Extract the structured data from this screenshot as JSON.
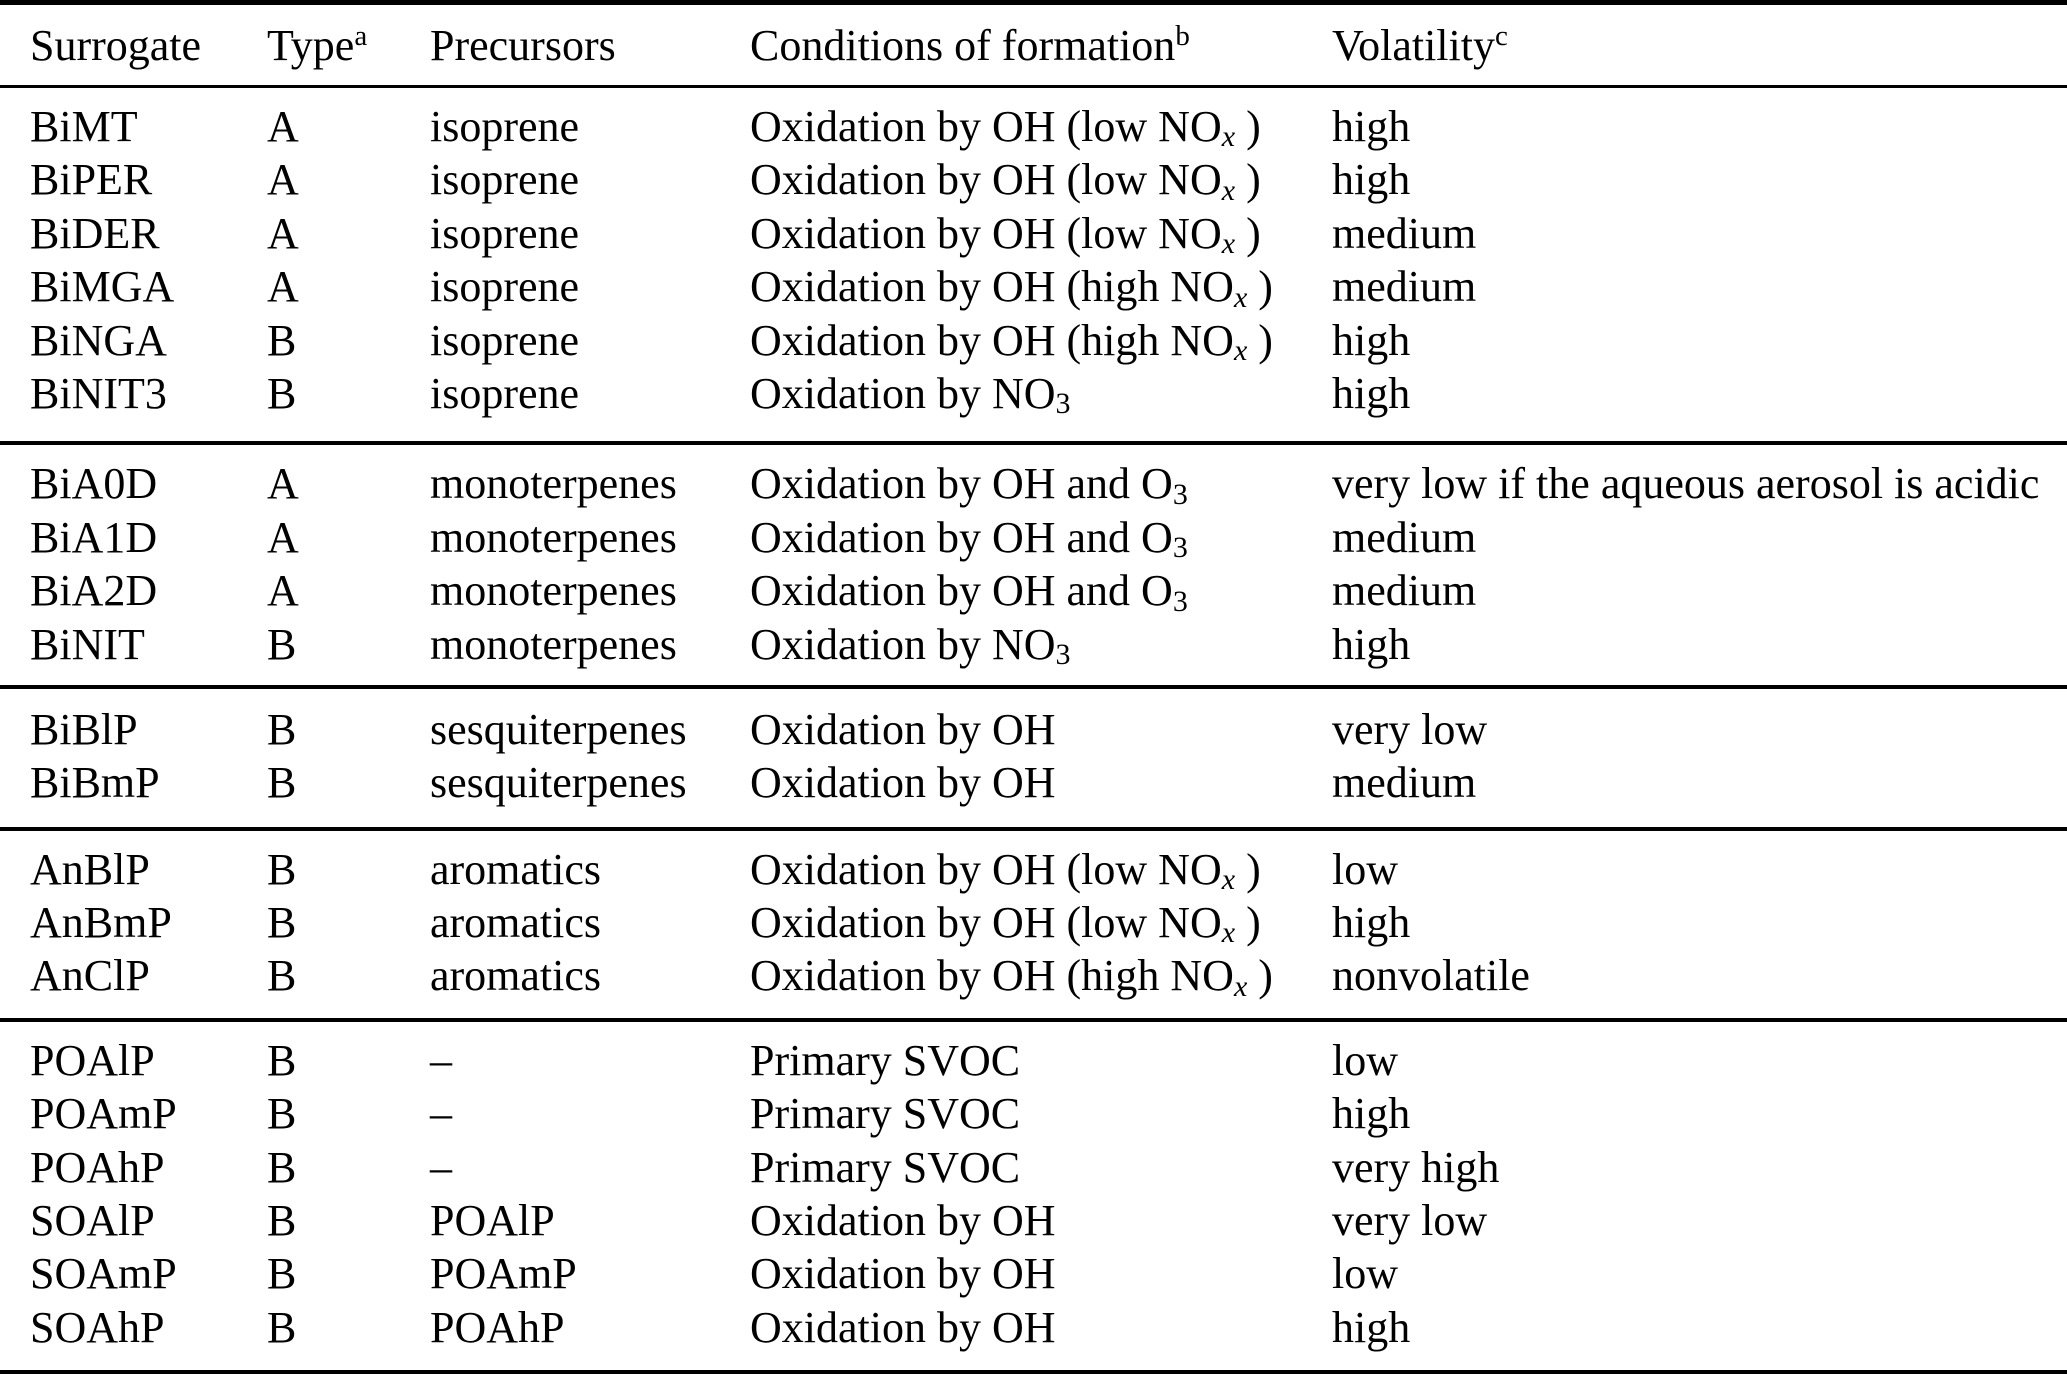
{
  "table": {
    "headers": [
      {
        "label": "Surrogate",
        "sup": ""
      },
      {
        "label": "Type",
        "sup": "a"
      },
      {
        "label": "Precursors",
        "sup": ""
      },
      {
        "label": "Conditions of formation",
        "sup": "b"
      },
      {
        "label": "Volatility",
        "sup": "c"
      }
    ],
    "groups": [
      {
        "rows": [
          {
            "surrogate": "BiMT",
            "type": "A",
            "precursors": "isoprene",
            "cond_pre": "Oxidation by OH (low NO",
            "cond_sub_it": "x",
            "cond_sub": "",
            "cond_post": " )",
            "volatility": "high"
          },
          {
            "surrogate": "BiPER",
            "type": "A",
            "precursors": "isoprene",
            "cond_pre": "Oxidation by OH (low NO",
            "cond_sub_it": "x",
            "cond_sub": "",
            "cond_post": " )",
            "volatility": "high"
          },
          {
            "surrogate": "BiDER",
            "type": "A",
            "precursors": "isoprene",
            "cond_pre": "Oxidation by OH (low NO",
            "cond_sub_it": "x",
            "cond_sub": "",
            "cond_post": " )",
            "volatility": "medium"
          },
          {
            "surrogate": "BiMGA",
            "type": "A",
            "precursors": "isoprene",
            "cond_pre": "Oxidation by OH (high NO",
            "cond_sub_it": "x",
            "cond_sub": "",
            "cond_post": " )",
            "volatility": "medium"
          },
          {
            "surrogate": "BiNGA",
            "type": "B",
            "precursors": "isoprene",
            "cond_pre": "Oxidation by OH (high NO",
            "cond_sub_it": "x",
            "cond_sub": "",
            "cond_post": " )",
            "volatility": "high"
          },
          {
            "surrogate": "BiNIT3",
            "type": "B",
            "precursors": "isoprene",
            "cond_pre": "Oxidation by NO",
            "cond_sub_it": "",
            "cond_sub": "3",
            "cond_post": "",
            "volatility": "high"
          }
        ]
      },
      {
        "rows": [
          {
            "surrogate": "BiA0D",
            "type": "A",
            "precursors": "monoterpenes",
            "cond_pre": "Oxidation by OH and O",
            "cond_sub_it": "",
            "cond_sub": "3",
            "cond_post": "",
            "volatility": "very low if the aqueous aerosol is acidic"
          },
          {
            "surrogate": "BiA1D",
            "type": "A",
            "precursors": "monoterpenes",
            "cond_pre": "Oxidation by OH and O",
            "cond_sub_it": "",
            "cond_sub": "3",
            "cond_post": "",
            "volatility": "medium"
          },
          {
            "surrogate": "BiA2D",
            "type": "A",
            "precursors": "monoterpenes",
            "cond_pre": "Oxidation by OH and O",
            "cond_sub_it": "",
            "cond_sub": "3",
            "cond_post": "",
            "volatility": "medium"
          },
          {
            "surrogate": "BiNIT",
            "type": "B",
            "precursors": "monoterpenes",
            "cond_pre": "Oxidation by NO",
            "cond_sub_it": "",
            "cond_sub": "3",
            "cond_post": "",
            "volatility": "high"
          }
        ]
      },
      {
        "rows": [
          {
            "surrogate": "BiBlP",
            "type": "B",
            "precursors": "sesquiterpenes",
            "cond_pre": "Oxidation by OH",
            "cond_sub_it": "",
            "cond_sub": "",
            "cond_post": "",
            "volatility": "very low"
          },
          {
            "surrogate": "BiBmP",
            "type": "B",
            "precursors": "sesquiterpenes",
            "cond_pre": "Oxidation by OH",
            "cond_sub_it": "",
            "cond_sub": "",
            "cond_post": "",
            "volatility": "medium"
          }
        ]
      },
      {
        "rows": [
          {
            "surrogate": "AnBlP",
            "type": "B",
            "precursors": "aromatics",
            "cond_pre": "Oxidation by OH (low NO",
            "cond_sub_it": "x",
            "cond_sub": "",
            "cond_post": " )",
            "volatility": "low"
          },
          {
            "surrogate": "AnBmP",
            "type": "B",
            "precursors": "aromatics",
            "cond_pre": "Oxidation by OH (low NO",
            "cond_sub_it": "x",
            "cond_sub": "",
            "cond_post": " )",
            "volatility": "high"
          },
          {
            "surrogate": "AnClP",
            "type": "B",
            "precursors": "aromatics",
            "cond_pre": "Oxidation by OH (high NO",
            "cond_sub_it": "x",
            "cond_sub": "",
            "cond_post": " )",
            "volatility": "nonvolatile"
          }
        ]
      },
      {
        "rows": [
          {
            "surrogate": "POAlP",
            "type": "B",
            "precursors": "–",
            "cond_pre": "Primary SVOC",
            "cond_sub_it": "",
            "cond_sub": "",
            "cond_post": "",
            "volatility": "low"
          },
          {
            "surrogate": "POAmP",
            "type": "B",
            "precursors": "–",
            "cond_pre": "Primary SVOC",
            "cond_sub_it": "",
            "cond_sub": "",
            "cond_post": "",
            "volatility": "high"
          },
          {
            "surrogate": "POAhP",
            "type": "B",
            "precursors": "–",
            "cond_pre": "Primary SVOC",
            "cond_sub_it": "",
            "cond_sub": "",
            "cond_post": "",
            "volatility": "very high"
          },
          {
            "surrogate": "SOAlP",
            "type": "B",
            "precursors": "POAlP",
            "cond_pre": "Oxidation by OH",
            "cond_sub_it": "",
            "cond_sub": "",
            "cond_post": "",
            "volatility": "very low"
          },
          {
            "surrogate": "SOAmP",
            "type": "B",
            "precursors": "POAmP",
            "cond_pre": "Oxidation by OH",
            "cond_sub_it": "",
            "cond_sub": "",
            "cond_post": "",
            "volatility": "low"
          },
          {
            "surrogate": "SOAhP",
            "type": "B",
            "precursors": "POAhP",
            "cond_pre": "Oxidation by OH",
            "cond_sub_it": "",
            "cond_sub": "",
            "cond_post": "",
            "volatility": "high"
          }
        ]
      }
    ]
  }
}
